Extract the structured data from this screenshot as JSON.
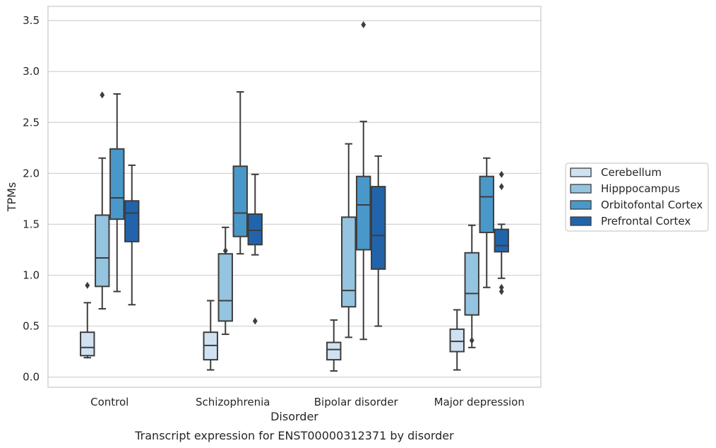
{
  "chart_data": {
    "type": "boxplot",
    "title": "Transcript expression for ENST00000312371 by disorder",
    "xlabel": "Disorder",
    "ylabel": "TPMs",
    "ylim": [
      -0.1,
      3.64
    ],
    "yticks": [
      0.0,
      0.5,
      1.0,
      1.5,
      2.0,
      2.5,
      3.0,
      3.5
    ],
    "ytick_labels": [
      "0.0",
      "0.5",
      "1.0",
      "1.5",
      "2.0",
      "2.5",
      "3.0",
      "3.5"
    ],
    "grid": "horizontal",
    "legend_position": "right",
    "categories": [
      "Control",
      "Schizophrenia",
      "Bipolar disorder",
      "Major depression"
    ],
    "series": [
      {
        "name": "Cerebellum",
        "color": "#d0e1f2",
        "boxes": [
          {
            "whislo": 0.19,
            "q1": 0.21,
            "med": 0.29,
            "q3": 0.44,
            "whishi": 0.73,
            "fliers": [
              0.9
            ]
          },
          {
            "whislo": 0.07,
            "q1": 0.17,
            "med": 0.31,
            "q3": 0.44,
            "whishi": 0.75,
            "fliers": []
          },
          {
            "whislo": 0.06,
            "q1": 0.17,
            "med": 0.27,
            "q3": 0.34,
            "whishi": 0.56,
            "fliers": []
          },
          {
            "whislo": 0.07,
            "q1": 0.25,
            "med": 0.35,
            "q3": 0.47,
            "whishi": 0.66,
            "fliers": []
          }
        ]
      },
      {
        "name": "Hipppocampus",
        "color": "#94c4df",
        "boxes": [
          {
            "whislo": 0.67,
            "q1": 0.89,
            "med": 1.17,
            "q3": 1.59,
            "whishi": 2.15,
            "fliers": [
              2.77
            ]
          },
          {
            "whislo": 0.42,
            "q1": 0.55,
            "med": 0.75,
            "q3": 1.21,
            "whishi": 1.47,
            "fliers": [
              1.24
            ]
          },
          {
            "whislo": 0.39,
            "q1": 0.69,
            "med": 0.85,
            "q3": 1.57,
            "whishi": 2.29,
            "fliers": []
          },
          {
            "whislo": 0.29,
            "q1": 0.61,
            "med": 0.82,
            "q3": 1.22,
            "whishi": 1.49,
            "fliers": [
              0.36
            ]
          }
        ]
      },
      {
        "name": "Orbitofontal Cortex",
        "color": "#4a98c9",
        "boxes": [
          {
            "whislo": 0.84,
            "q1": 1.55,
            "med": 1.76,
            "q3": 2.24,
            "whishi": 2.78,
            "fliers": []
          },
          {
            "whislo": 1.21,
            "q1": 1.38,
            "med": 1.61,
            "q3": 2.07,
            "whishi": 2.8,
            "fliers": []
          },
          {
            "whislo": 0.37,
            "q1": 1.25,
            "med": 1.69,
            "q3": 1.97,
            "whishi": 2.51,
            "fliers": [
              3.46
            ]
          },
          {
            "whislo": 0.88,
            "q1": 1.42,
            "med": 1.77,
            "q3": 1.97,
            "whishi": 2.15,
            "fliers": []
          }
        ]
      },
      {
        "name": "Prefrontal Cortex",
        "color": "#2164ab",
        "boxes": [
          {
            "whislo": 0.71,
            "q1": 1.33,
            "med": 1.61,
            "q3": 1.73,
            "whishi": 2.08,
            "fliers": []
          },
          {
            "whislo": 1.2,
            "q1": 1.3,
            "med": 1.44,
            "q3": 1.6,
            "whishi": 1.99,
            "fliers": [
              0.55
            ]
          },
          {
            "whislo": 0.5,
            "q1": 1.06,
            "med": 1.39,
            "q3": 1.87,
            "whishi": 2.17,
            "fliers": []
          },
          {
            "whislo": 0.97,
            "q1": 1.23,
            "med": 1.29,
            "q3": 1.45,
            "whishi": 1.5,
            "fliers": [
              1.99,
              1.87,
              0.88,
              0.84
            ]
          }
        ]
      }
    ]
  }
}
